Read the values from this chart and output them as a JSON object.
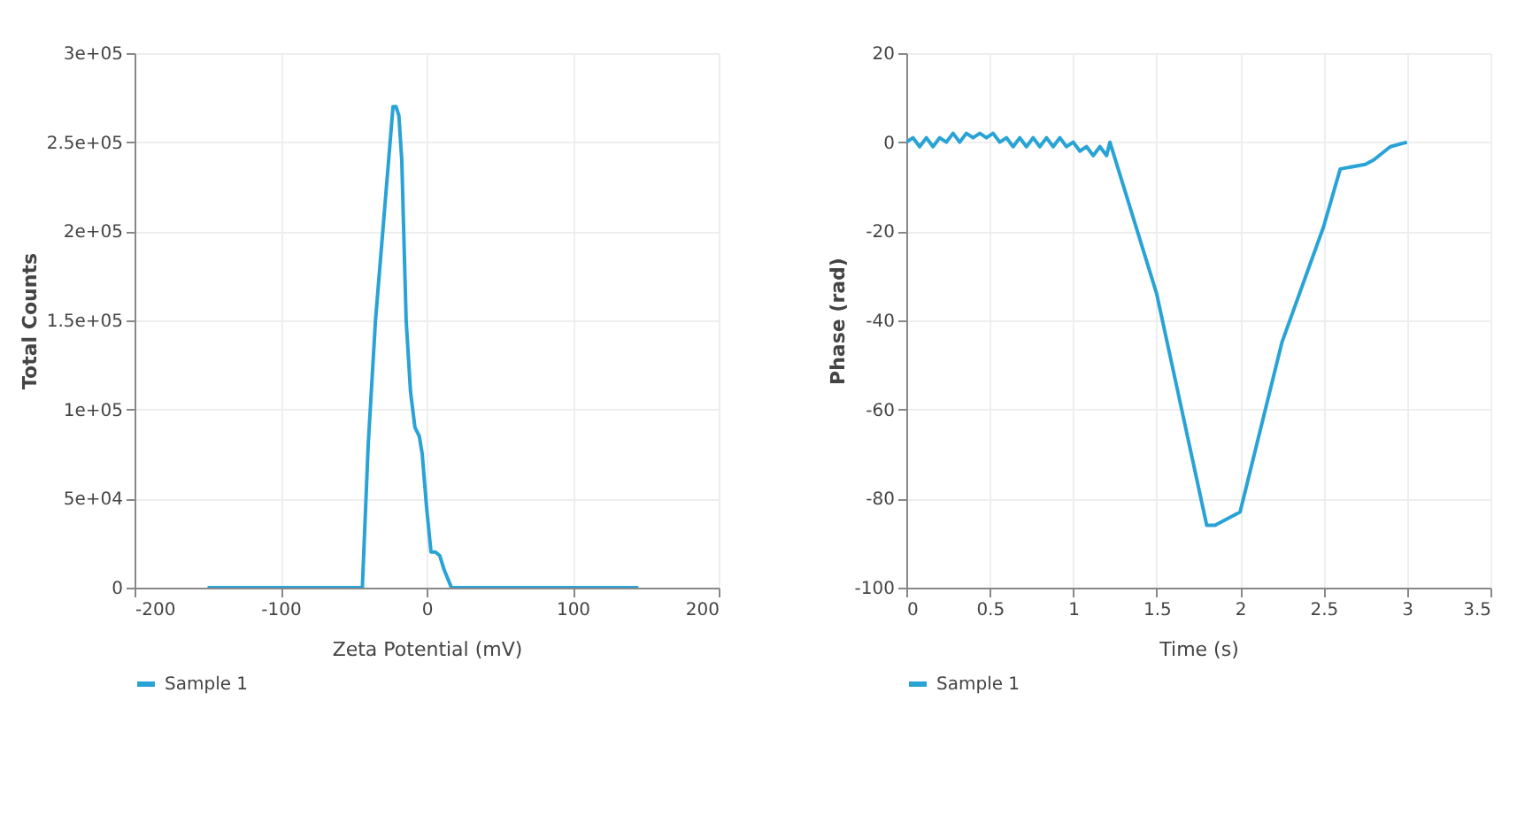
{
  "chart_data": [
    {
      "type": "line",
      "xlabel": "Zeta Potential (mV)",
      "ylabel": "Total Counts",
      "xlim": [
        -200,
        200
      ],
      "xticks": [
        -200,
        -100,
        0,
        100,
        200
      ],
      "ylim": [
        0,
        300000
      ],
      "yticks": [
        {
          "value": 0,
          "label": "0"
        },
        {
          "value": 50000,
          "label": "5e+04"
        },
        {
          "value": 100000,
          "label": "1e+05"
        },
        {
          "value": 150000,
          "label": "1.5e+05"
        },
        {
          "value": 200000,
          "label": "2e+05"
        },
        {
          "value": 250000,
          "label": "2.5e+05"
        },
        {
          "value": 300000,
          "label": "3e+05"
        }
      ],
      "grid": true,
      "legend": "bottom left",
      "marker": "none",
      "line_style": "solid",
      "series": [
        {
          "name": "Sample 1",
          "color": "#29a3d6",
          "x": [
            -150,
            -44,
            -40,
            -35,
            -31,
            -26,
            -23,
            -21,
            -19,
            -17,
            -14,
            -11,
            -8,
            -5,
            -3,
            0,
            3,
            6,
            9,
            12,
            17,
            145
          ],
          "values": [
            0,
            0,
            80000,
            150000,
            190000,
            240000,
            270000,
            270000,
            265000,
            240000,
            150000,
            110000,
            90000,
            85000,
            75000,
            45000,
            20000,
            20000,
            18000,
            10000,
            0,
            0
          ]
        }
      ]
    },
    {
      "type": "line",
      "xlabel": "Time (s)",
      "ylabel": "Phase (rad)",
      "xlim": [
        0,
        3.5
      ],
      "xticks": [
        0,
        0.5,
        1,
        1.5,
        2,
        2.5,
        3,
        3.5
      ],
      "ylim": [
        -100,
        20
      ],
      "yticks": [
        -100,
        -80,
        -60,
        -40,
        -20,
        0,
        20
      ],
      "grid": true,
      "legend": "bottom left",
      "marker": "none",
      "line_style": "solid",
      "series": [
        {
          "name": "Sample 1",
          "color": "#29a3d6",
          "x": [
            0,
            0.04,
            0.08,
            0.12,
            0.16,
            0.2,
            0.24,
            0.28,
            0.32,
            0.36,
            0.4,
            0.44,
            0.48,
            0.52,
            0.56,
            0.6,
            0.64,
            0.68,
            0.72,
            0.76,
            0.8,
            0.84,
            0.88,
            0.92,
            0.96,
            1.0,
            1.04,
            1.08,
            1.12,
            1.16,
            1.2,
            1.22,
            1.5,
            1.8,
            1.85,
            2.0,
            2.25,
            2.5,
            2.6,
            2.75,
            2.8,
            2.9,
            3.0
          ],
          "values": [
            0,
            1,
            -1,
            1,
            -1,
            1,
            0,
            2,
            0,
            2,
            1,
            2,
            1,
            2,
            0,
            1,
            -1,
            1,
            -1,
            1,
            -1,
            1,
            -1,
            1,
            -1,
            0,
            -2,
            -1,
            -3,
            -1,
            -3,
            0,
            -34,
            -86,
            -86,
            -83,
            -45,
            -19,
            -6,
            -5,
            -4,
            -1,
            0
          ]
        }
      ]
    }
  ]
}
